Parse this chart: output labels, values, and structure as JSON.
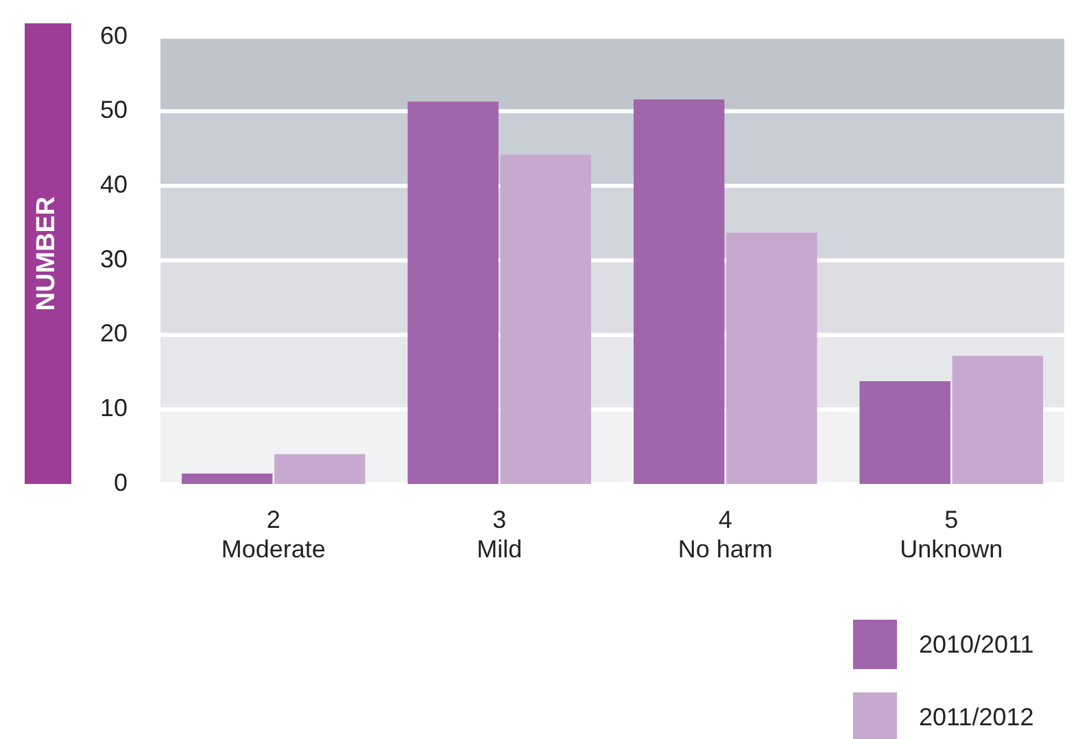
{
  "chart_data": {
    "type": "bar",
    "ylabel": "NUMBER",
    "categories": [
      "2\nModerate",
      "3\nMild",
      "4\nNo harm",
      "5\nUnknown"
    ],
    "series": [
      {
        "name": "2010/2011",
        "color": "#a065ab",
        "values": [
          1.4,
          51.3,
          51.6,
          13.8
        ]
      },
      {
        "name": "2011/2012",
        "color": "#c7a9cf",
        "values": [
          4,
          44.2,
          33.7,
          17.2
        ]
      }
    ],
    "ylim": [
      0,
      60
    ],
    "yticks": [
      0,
      10,
      20,
      30,
      40,
      50,
      60
    ],
    "grid": "y",
    "legend": "bottom right",
    "bands": [
      {
        "axis": "y",
        "from": 0,
        "to": 10,
        "color": "#f1f2f4"
      },
      {
        "axis": "y",
        "from": 10,
        "to": 20,
        "color": "#e6e7eb"
      },
      {
        "axis": "y",
        "from": 20,
        "to": 30,
        "color": "#dcdee3"
      },
      {
        "axis": "y",
        "from": 30,
        "to": 40,
        "color": "#d2d5dc"
      },
      {
        "axis": "y",
        "from": 40,
        "to": 50,
        "color": "#c9cdd5"
      },
      {
        "axis": "y",
        "from": 50,
        "to": 60,
        "color": "#c0c4cc"
      }
    ]
  }
}
